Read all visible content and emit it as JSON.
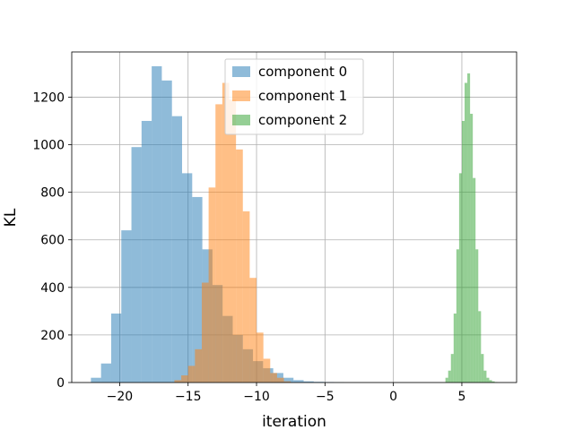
{
  "chart_data": {
    "type": "histogram",
    "xlabel": "iteration",
    "ylabel": "KL",
    "xlim": [
      -23.5,
      9
    ],
    "ylim": [
      0,
      1390
    ],
    "x_ticks": [
      -20,
      -15,
      -10,
      -5,
      0,
      5
    ],
    "x_tick_labels": [
      "−20",
      "−15",
      "−10",
      "−5",
      "0",
      "5"
    ],
    "y_ticks": [
      0,
      200,
      400,
      600,
      800,
      1000,
      1200
    ],
    "y_tick_labels": [
      "0",
      "200",
      "400",
      "600",
      "800",
      "1000",
      "1200"
    ],
    "grid": true,
    "legend_position": "upper center",
    "series": [
      {
        "name": "component 0",
        "color": "#1f77b4",
        "opacity": 0.5,
        "bin_edges": [
          -22.1,
          -21.36,
          -20.62,
          -19.88,
          -19.14,
          -18.4,
          -17.66,
          -16.92,
          -16.18,
          -15.44,
          -14.7,
          -13.96,
          -13.22,
          -12.48,
          -11.74,
          -11.0,
          -10.26,
          -9.52,
          -8.78,
          -8.04,
          -7.3,
          -6.56,
          -5.82,
          -5.08,
          -4.34,
          -3.6
        ],
        "counts": [
          20,
          80,
          290,
          640,
          990,
          1100,
          1330,
          1270,
          1120,
          880,
          780,
          560,
          410,
          280,
          200,
          140,
          90,
          60,
          40,
          20,
          10,
          5,
          3,
          2,
          1
        ]
      },
      {
        "name": "component 1",
        "color": "#ff7f0e",
        "opacity": 0.5,
        "bin_edges": [
          -16.0,
          -15.5,
          -15.0,
          -14.5,
          -14.0,
          -13.5,
          -13.0,
          -12.5,
          -12.0,
          -11.5,
          -11.0,
          -10.5,
          -10.0,
          -9.5,
          -9.0,
          -8.5,
          -8.0,
          -7.5
        ],
        "counts": [
          10,
          30,
          70,
          140,
          420,
          820,
          1170,
          1260,
          1190,
          980,
          720,
          440,
          210,
          100,
          40,
          20,
          5
        ]
      },
      {
        "name": "component 2",
        "color": "#2ca02c",
        "opacity": 0.5,
        "bin_edges": [
          3.8,
          4.0,
          4.2,
          4.4,
          4.6,
          4.8,
          5.0,
          5.2,
          5.4,
          5.6,
          5.8,
          6.0,
          6.2,
          6.4,
          6.6,
          6.8,
          7.0,
          7.2,
          7.4,
          7.6
        ],
        "counts": [
          20,
          50,
          120,
          290,
          560,
          880,
          1100,
          1260,
          1300,
          1130,
          860,
          560,
          300,
          120,
          50,
          20,
          10,
          5,
          2
        ]
      }
    ]
  }
}
